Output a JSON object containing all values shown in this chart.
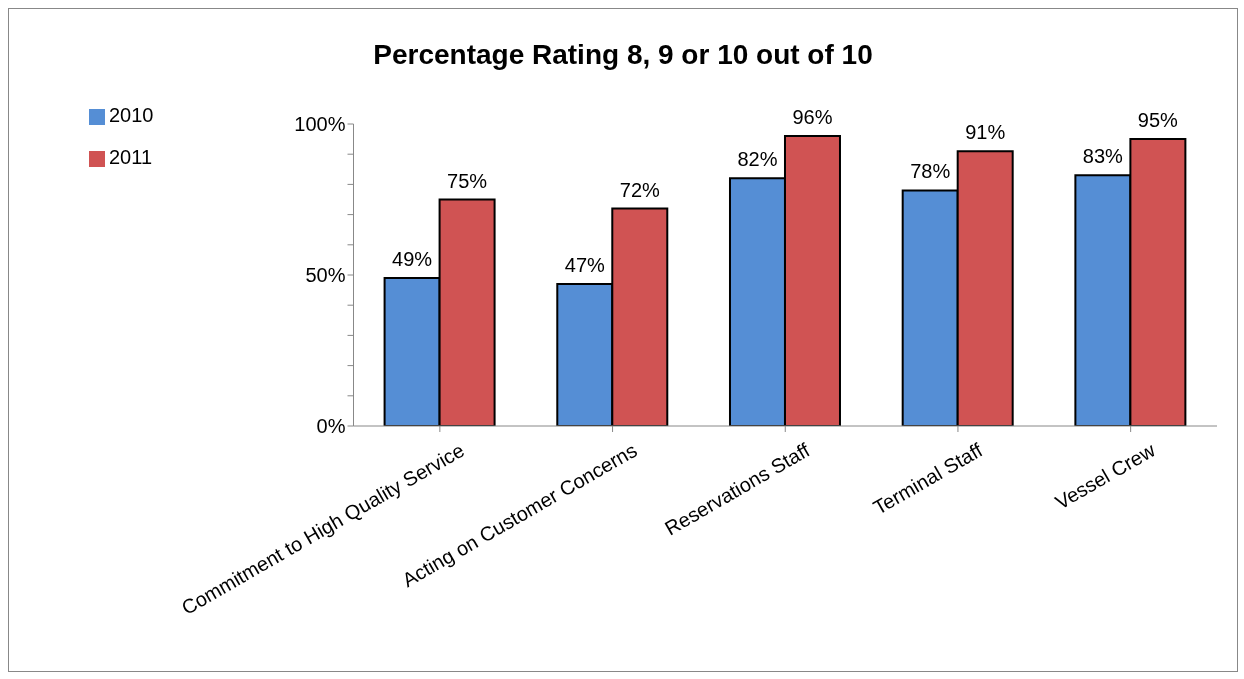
{
  "chart_data": {
    "type": "bar",
    "title": "Percentage Rating 8, 9 or 10 out of 10",
    "categories": [
      "Commitment to High Quality Service",
      "Acting on Customer Concerns",
      "Reservations Staff",
      "Terminal Staff",
      "Vessel Crew"
    ],
    "series": [
      {
        "name": "2010",
        "color": "#558ed5",
        "values": [
          49,
          47,
          82,
          78,
          83
        ],
        "value_labels": [
          "49%",
          "47%",
          "82%",
          "78%",
          "83%"
        ]
      },
      {
        "name": "2011",
        "color": "#d05353",
        "values": [
          75,
          72,
          96,
          91,
          95
        ],
        "value_labels": [
          "75%",
          "72%",
          "96%",
          "91%",
          "95%"
        ]
      }
    ],
    "ylim": [
      0,
      100
    ],
    "yticks": [
      {
        "value": 0,
        "label": "0%"
      },
      {
        "value": 10,
        "label": null
      },
      {
        "value": 20,
        "label": null
      },
      {
        "value": 30,
        "label": null
      },
      {
        "value": 40,
        "label": null
      },
      {
        "value": 50,
        "label": "50%"
      },
      {
        "value": 60,
        "label": null
      },
      {
        "value": 70,
        "label": null
      },
      {
        "value": 80,
        "label": null
      },
      {
        "value": 90,
        "label": null
      },
      {
        "value": 100,
        "label": "100%"
      }
    ],
    "grid": false,
    "legend": "top left"
  }
}
